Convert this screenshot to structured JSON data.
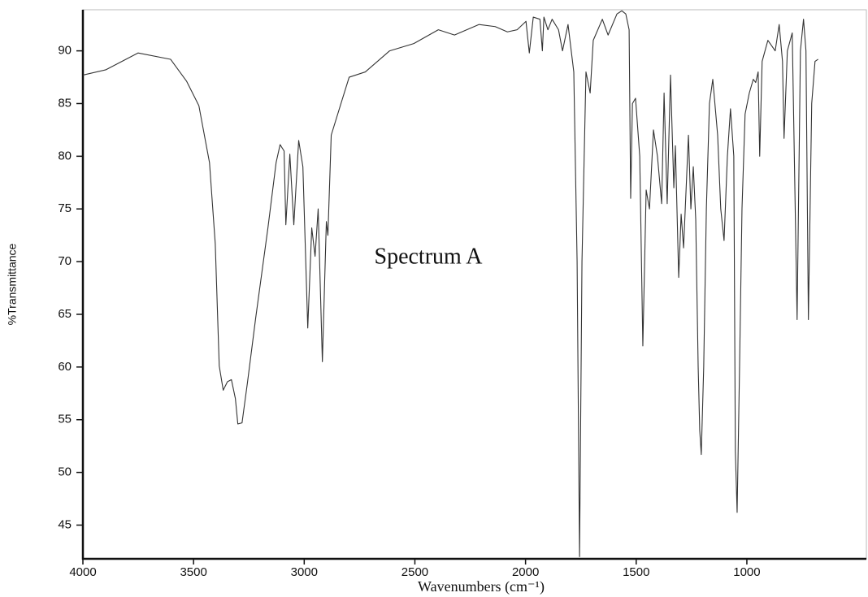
{
  "chart_data": {
    "type": "line",
    "annotation": "Spectrum A",
    "xlabel": "Wavenumbers (cm⁻¹)",
    "ylabel": "%Transmittance",
    "color": "#333333",
    "xlim": [
      4000,
      460
    ],
    "ylim": [
      41.8,
      93.9
    ],
    "xticks": [
      4000,
      3500,
      3000,
      2500,
      2000,
      1500,
      1000
    ],
    "yticks": [
      45,
      50,
      55,
      60,
      65,
      70,
      75,
      80,
      85,
      90
    ],
    "x": [
      4000,
      3897,
      3751,
      3604,
      3531,
      3476,
      3428,
      3402,
      3384,
      3366,
      3347,
      3329,
      3311,
      3300,
      3281,
      3256,
      3219,
      3164,
      3127,
      3109,
      3091,
      3083,
      3065,
      3047,
      3025,
      3006,
      2984,
      2966,
      2951,
      2937,
      2918,
      2900,
      2893,
      2878,
      2834,
      2797,
      2724,
      2614,
      2504,
      2394,
      2321,
      2210,
      2137,
      2082,
      2038,
      1998,
      1983,
      1965,
      1935,
      1924,
      1917,
      1899,
      1880,
      1851,
      1833,
      1808,
      1782,
      1767,
      1756,
      1745,
      1727,
      1708,
      1694,
      1653,
      1627,
      1587,
      1565,
      1547,
      1532,
      1525,
      1517,
      1503,
      1484,
      1470,
      1455,
      1440,
      1422,
      1404,
      1385,
      1374,
      1360,
      1345,
      1330,
      1323,
      1308,
      1297,
      1286,
      1264,
      1253,
      1242,
      1231,
      1220,
      1213,
      1206,
      1195,
      1183,
      1169,
      1154,
      1132,
      1118,
      1103,
      1088,
      1074,
      1059,
      1052,
      1044,
      1033,
      1022,
      1008,
      989,
      971,
      960,
      949,
      942,
      931,
      905,
      872,
      854,
      839,
      832,
      817,
      795,
      773,
      758,
      744,
      733,
      722,
      707,
      692,
      678
    ],
    "values": [
      87.7,
      88.2,
      89.8,
      89.2,
      87.1,
      84.8,
      79.4,
      71.7,
      60.1,
      57.8,
      58.6,
      58.8,
      57,
      54.6,
      54.7,
      58.6,
      64.7,
      73.2,
      79.4,
      81.1,
      80.5,
      73.5,
      80.2,
      73.5,
      81.5,
      79,
      63.7,
      73.2,
      70.5,
      75,
      60.5,
      73.8,
      72.5,
      82,
      85,
      87.5,
      88,
      90,
      90.7,
      92,
      91.5,
      92.5,
      92.3,
      91.8,
      92,
      92.8,
      89.8,
      93.2,
      93,
      90,
      93.2,
      92,
      93,
      92,
      90,
      92.5,
      88,
      70,
      42,
      70,
      88,
      86,
      91,
      93,
      91.5,
      93.5,
      93.8,
      93.5,
      92,
      76,
      85,
      85.5,
      80,
      62,
      76.8,
      75,
      82.5,
      80,
      75.5,
      86,
      75.5,
      87.7,
      77,
      81,
      68.5,
      74.5,
      71.3,
      82,
      75,
      79,
      74,
      60,
      54,
      51.7,
      60,
      75,
      85,
      87.3,
      82,
      75,
      72,
      80,
      84.5,
      80,
      52,
      46.2,
      60,
      75,
      84,
      86,
      87.3,
      87,
      88,
      80,
      89,
      91,
      90,
      92.5,
      89,
      81.7,
      90,
      91.7,
      64.5,
      90,
      93,
      90,
      64.5,
      85,
      89,
      89.2
    ]
  }
}
